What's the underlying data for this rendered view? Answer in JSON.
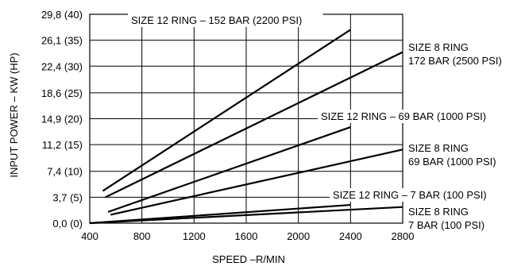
{
  "chart_data": {
    "type": "line",
    "xlabel": "SPEED –R/MIN",
    "ylabel": "INPUT POWER – KW (HP)",
    "xlim": [
      400,
      2800
    ],
    "ylim": [
      0,
      29.8
    ],
    "grid": true,
    "x_ticks": [
      {
        "value": 400,
        "label": "400"
      },
      {
        "value": 800,
        "label": "800"
      },
      {
        "value": 1200,
        "label": "1200"
      },
      {
        "value": 1600,
        "label": "1600"
      },
      {
        "value": 2000,
        "label": "2000"
      },
      {
        "value": 2400,
        "label": "2400"
      },
      {
        "value": 2800,
        "label": "2800"
      }
    ],
    "y_ticks": [
      {
        "value": 0.0,
        "label": "0,0 (0)"
      },
      {
        "value": 3.7,
        "label": "3,7 (5)"
      },
      {
        "value": 7.4,
        "label": "7,4 (10)"
      },
      {
        "value": 11.2,
        "label": "11,2 (15)"
      },
      {
        "value": 14.9,
        "label": "14,9 (20)"
      },
      {
        "value": 18.6,
        "label": "18,6 (25)"
      },
      {
        "value": 22.4,
        "label": "22,4 (30)"
      },
      {
        "value": 26.1,
        "label": "26,1 (35)"
      },
      {
        "value": 29.8,
        "label": "29,8 (40)"
      }
    ],
    "series": [
      {
        "name": "SIZE 12 RING – 152 BAR (2200 PSI)",
        "x": [
          500,
          2400
        ],
        "y": [
          4.6,
          27.6
        ]
      },
      {
        "name": "SIZE 8 RING 172 BAR (2500 PSI)",
        "x": [
          520,
          2800
        ],
        "y": [
          3.7,
          24.4
        ]
      },
      {
        "name": "SIZE 12 RING – 69 BAR (1000 PSI)",
        "x": [
          540,
          2400
        ],
        "y": [
          1.6,
          13.7
        ]
      },
      {
        "name": "SIZE 8 RING 69 BAR (1000 PSI)",
        "x": [
          560,
          2800
        ],
        "y": [
          1.2,
          10.5
        ]
      },
      {
        "name": "SIZE 12 RING – 7 BAR (100 PSI)",
        "x": [
          400,
          2400
        ],
        "y": [
          0.0,
          2.6
        ]
      },
      {
        "name": "SIZE 8 RING 7 BAR (100 PSI)",
        "x": [
          400,
          2800
        ],
        "y": [
          0.0,
          2.3
        ]
      }
    ],
    "series_labels": [
      {
        "lines": [
          "SIZE 12 RING – 152 BAR (2200 PSI)"
        ]
      },
      {
        "lines": [
          "SIZE 8 RING",
          "172 BAR (2500 PSI)"
        ]
      },
      {
        "lines": [
          "SIZE 12 RING – 69 BAR (1000 PSI)"
        ]
      },
      {
        "lines": [
          "SIZE 8 RING",
          "69 BAR (1000 PSI)"
        ]
      },
      {
        "lines": [
          "SIZE 12 RING – 7 BAR (100 PSI)"
        ]
      },
      {
        "lines": [
          "SIZE 8 RING",
          "7 BAR (100 PSI)"
        ]
      }
    ]
  }
}
